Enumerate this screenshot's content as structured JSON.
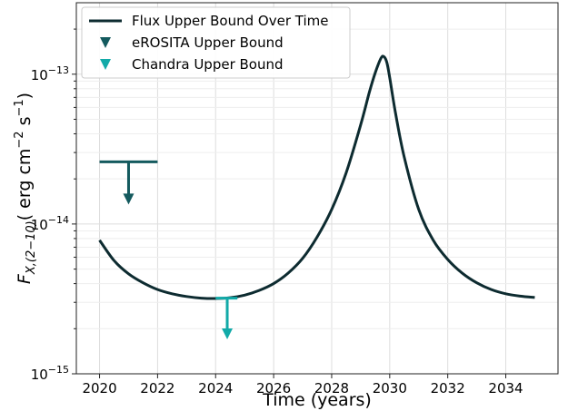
{
  "chart_data": {
    "type": "line",
    "xlabel": "Time (years)",
    "ylabel_main": "F",
    "ylabel_sub": "X,(2−10)",
    "ylabel_unit": "( erg cm",
    "ylabel_exp1": "−2",
    "ylabel_mid": " s",
    "ylabel_exp2": "−1",
    "ylabel_close": ")",
    "xlim": [
      2019.2,
      2035.8
    ],
    "ylim": [
      1e-15,
      3e-13
    ],
    "yscale": "log",
    "grid": true,
    "legend_position": "top-left",
    "x_ticks": [
      2020,
      2022,
      2024,
      2026,
      2028,
      2030,
      2032,
      2034
    ],
    "x_tick_labels": [
      "2020",
      "2022",
      "2024",
      "2026",
      "2028",
      "2030",
      "2032",
      "2034"
    ],
    "y_ticks": [
      {
        "value": 1e-15,
        "base": "10",
        "exp": "−15"
      },
      {
        "value": 1e-14,
        "base": "10",
        "exp": "−14"
      },
      {
        "value": 1e-13,
        "base": "10",
        "exp": "−13"
      }
    ],
    "series": [
      {
        "name": "Flux Upper Bound Over Time",
        "color": "#0d2b30",
        "x": [
          2020.0,
          2020.5,
          2021.0,
          2021.5,
          2022.0,
          2022.5,
          2023.0,
          2023.5,
          2024.0,
          2024.5,
          2025.0,
          2025.5,
          2026.0,
          2026.5,
          2027.0,
          2027.5,
          2028.0,
          2028.5,
          2029.0,
          2029.3,
          2029.5,
          2029.7,
          2029.8,
          2029.9,
          2030.0,
          2030.2,
          2030.5,
          2031.0,
          2031.5,
          2032.0,
          2032.5,
          2033.0,
          2033.5,
          2034.0,
          2034.5,
          2035.0
        ],
        "y": [
          7.8e-15,
          5.7e-15,
          4.65e-15,
          4.05e-15,
          3.65e-15,
          3.42e-15,
          3.28e-15,
          3.2e-15,
          3.18e-15,
          3.22e-15,
          3.35e-15,
          3.6e-15,
          4e-15,
          4.7e-15,
          5.9e-15,
          8.2e-15,
          1.25e-14,
          2.2e-14,
          4.6e-14,
          7.6e-14,
          1.02e-13,
          1.28e-13,
          1.31e-13,
          1.2e-13,
          9.5e-14,
          5.5e-14,
          2.8e-14,
          1.25e-14,
          7.8e-15,
          5.8e-15,
          4.7e-15,
          4.05e-15,
          3.65e-15,
          3.42e-15,
          3.3e-15,
          3.23e-15
        ]
      }
    ],
    "upper_limits": [
      {
        "name": "eROSITA Upper Bound",
        "color": "#145a5e",
        "x": 2021.0,
        "x_range": [
          2020.0,
          2022.0
        ],
        "y": 2.6e-14,
        "arrow_to": 1.35e-14
      },
      {
        "name": "Chandra Upper Bound",
        "color": "#12aaa8",
        "x": 2024.4,
        "x_range": [
          2024.0,
          2024.75
        ],
        "y": 3.2e-15,
        "arrow_to": 1.7e-15
      }
    ]
  }
}
